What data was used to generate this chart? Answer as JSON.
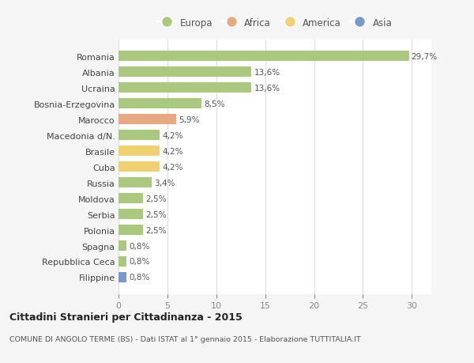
{
  "countries": [
    "Filippine",
    "Repubblica Ceca",
    "Spagna",
    "Polonia",
    "Serbia",
    "Moldova",
    "Russia",
    "Cuba",
    "Brasile",
    "Macedonia d/N.",
    "Marocco",
    "Bosnia-Erzegovina",
    "Ucraina",
    "Albania",
    "Romania"
  ],
  "values": [
    0.8,
    0.8,
    0.8,
    2.5,
    2.5,
    2.5,
    3.4,
    4.2,
    4.2,
    4.2,
    5.9,
    8.5,
    13.6,
    13.6,
    29.7
  ],
  "labels": [
    "0,8%",
    "0,8%",
    "0,8%",
    "2,5%",
    "2,5%",
    "2,5%",
    "3,4%",
    "4,2%",
    "4,2%",
    "4,2%",
    "5,9%",
    "8,5%",
    "13,6%",
    "13,6%",
    "29,7%"
  ],
  "bar_color_europa": "#aac97e",
  "bar_color_africa": "#e8a882",
  "bar_color_america": "#f0d070",
  "bar_color_asia": "#7799cc",
  "title": "Cittadini Stranieri per Cittadinanza - 2015",
  "subtitle": "COMUNE DI ANGOLO TERME (BS) - Dati ISTAT al 1° gennaio 2015 - Elaborazione TUTTITALIA.IT",
  "xlim": [
    0,
    32
  ],
  "xticks": [
    0,
    5,
    10,
    15,
    20,
    25,
    30
  ],
  "legend_labels": [
    "Europa",
    "Africa",
    "America",
    "Asia"
  ],
  "legend_colors": [
    "#aac97e",
    "#e8a882",
    "#f0d070",
    "#7799cc"
  ],
  "background_color": "#f5f5f5",
  "plot_bg_color": "#ffffff"
}
